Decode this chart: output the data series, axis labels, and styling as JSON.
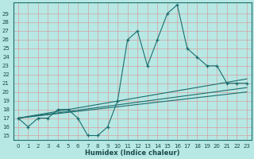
{
  "xlabel": "Humidex (Indice chaleur)",
  "background_color": "#b8e8e4",
  "grid_color": "#d4a0a0",
  "line_color": "#1a6e6e",
  "xlim": [
    -0.5,
    23.5
  ],
  "ylim": [
    14.5,
    30.3
  ],
  "xticks": [
    0,
    1,
    2,
    3,
    4,
    5,
    6,
    7,
    8,
    9,
    10,
    11,
    12,
    13,
    14,
    15,
    16,
    17,
    18,
    19,
    20,
    21,
    22,
    23
  ],
  "yticks": [
    15,
    16,
    17,
    18,
    19,
    20,
    21,
    22,
    23,
    24,
    25,
    26,
    27,
    28,
    29
  ],
  "main_line_x": [
    0,
    1,
    2,
    3,
    4,
    5,
    6,
    7,
    8,
    9,
    10,
    11,
    12,
    13,
    14,
    15,
    16,
    17,
    18,
    19,
    20,
    21,
    22,
    23
  ],
  "main_line_y": [
    17,
    16,
    17,
    17,
    18,
    18,
    17,
    15,
    15,
    16,
    19,
    26,
    27,
    23,
    26,
    29,
    30,
    25,
    24,
    23,
    23,
    21,
    21,
    21
  ],
  "trend_lines": [
    {
      "x": [
        0,
        23
      ],
      "y": [
        17,
        21.5
      ]
    },
    {
      "x": [
        0,
        23
      ],
      "y": [
        17,
        20.5
      ]
    },
    {
      "x": [
        0,
        23
      ],
      "y": [
        17,
        20.0
      ]
    }
  ]
}
